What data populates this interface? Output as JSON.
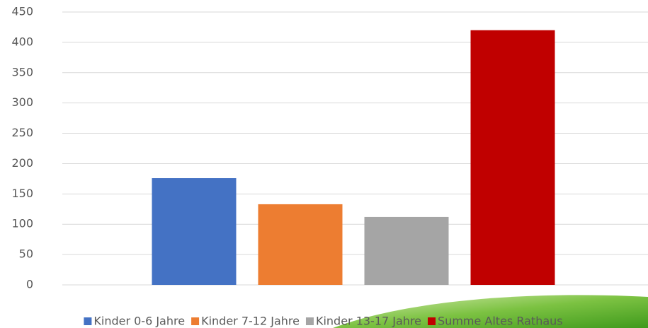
{
  "chart_data": {
    "type": "bar",
    "categories": [
      null
    ],
    "series": [
      {
        "name": "Kinder 0-6 Jahre",
        "color": "#4472c4",
        "values": [
          176
        ]
      },
      {
        "name": "Kinder 7-12 Jahre",
        "color": "#ed7d31",
        "values": [
          133
        ]
      },
      {
        "name": "Kinder 13-17 Jahre",
        "color": "#a5a5a5",
        "values": [
          112
        ]
      },
      {
        "name": "Summe Altes Rathaus",
        "color": "#c00000",
        "values": [
          420
        ]
      }
    ],
    "ylim": [
      0,
      450
    ],
    "yticks": [
      0,
      50,
      100,
      150,
      200,
      250,
      300,
      350,
      400,
      450
    ],
    "grid": true,
    "legend": "bottom"
  }
}
